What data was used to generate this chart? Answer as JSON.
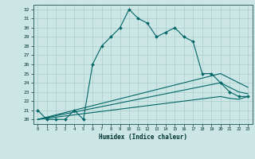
{
  "title": "",
  "xlabel": "Humidex (Indice chaleur)",
  "xlim": [
    -0.5,
    23.5
  ],
  "ylim": [
    19.5,
    32.5
  ],
  "xticks": [
    0,
    1,
    2,
    3,
    4,
    5,
    6,
    7,
    8,
    9,
    10,
    11,
    12,
    13,
    14,
    15,
    16,
    17,
    18,
    19,
    20,
    21,
    22,
    23
  ],
  "yticks": [
    20,
    21,
    22,
    23,
    24,
    25,
    26,
    27,
    28,
    29,
    30,
    31,
    32
  ],
  "bg_color": "#cce5e5",
  "line_color": "#006666",
  "grid_color": "#aacccc",
  "lines": [
    {
      "x": [
        0,
        1,
        2,
        3,
        4,
        5,
        6,
        7,
        8,
        9,
        10,
        11,
        12,
        13,
        14,
        15,
        16,
        17,
        18,
        19,
        20,
        21,
        22,
        23
      ],
      "y": [
        21,
        20,
        20,
        20,
        21,
        20,
        26,
        28,
        29,
        30,
        32,
        31,
        30.5,
        29,
        29.5,
        30,
        29,
        28.5,
        25,
        25,
        24,
        23,
        22.5,
        22.5
      ],
      "marker": true
    },
    {
      "x": [
        0,
        20,
        21,
        22,
        23
      ],
      "y": [
        20,
        25,
        24.5,
        24,
        23.5
      ],
      "marker": false
    },
    {
      "x": [
        0,
        20,
        21,
        22,
        23
      ],
      "y": [
        20,
        24,
        23.5,
        23,
        22.8
      ],
      "marker": false
    },
    {
      "x": [
        0,
        20,
        21,
        22,
        23
      ],
      "y": [
        20,
        22.5,
        22.3,
        22.2,
        22.5
      ],
      "marker": false
    }
  ]
}
